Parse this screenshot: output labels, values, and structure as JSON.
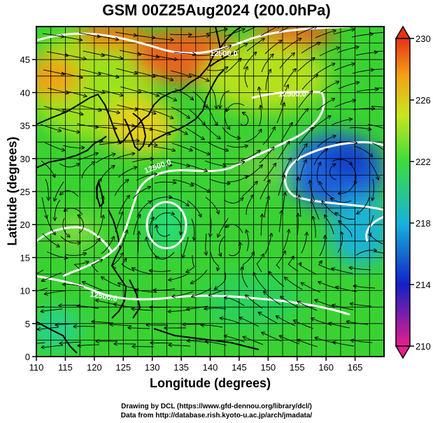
{
  "title": "GSM 00Z25Aug2024 (200.0hPa)",
  "chart_data": {
    "type": "heatmap",
    "title": "GSM 00Z25Aug2024 (200.0hPa)",
    "xlabel": "Longitude (degrees)",
    "ylabel": "Latitude  (degrees)",
    "xlim": [
      110,
      170
    ],
    "ylim": [
      0,
      50
    ],
    "x_ticks": [
      "110",
      "115",
      "120",
      "125",
      "130",
      "135",
      "140",
      "145",
      "150",
      "155",
      "160",
      "165"
    ],
    "y_ticks": [
      "0",
      "5",
      "10",
      "15",
      "20",
      "25",
      "30",
      "35",
      "40",
      "45"
    ],
    "colorbar": {
      "ticks": [
        "230",
        "226",
        "222",
        "218",
        "214",
        "210"
      ],
      "range": [
        210,
        230
      ],
      "colors": [
        "#e81e8c",
        "#1420c8",
        "#14b4dc",
        "#3cdc3c",
        "#c8e61e",
        "#f5a014",
        "#e83214"
      ]
    },
    "contour_labels": [
      "12500.0",
      "12500.0",
      "12500.0",
      "12500.0"
    ],
    "grid": true,
    "features": [
      "streamlines",
      "coastlines",
      "height contours"
    ]
  },
  "credits": {
    "line1": "Drawing by DCL (https://www.gfd-dennou.org/library/dcl/)",
    "line2": "Data from http://database.rish.kyoto-u.ac.jp/arch/jmadata/"
  }
}
